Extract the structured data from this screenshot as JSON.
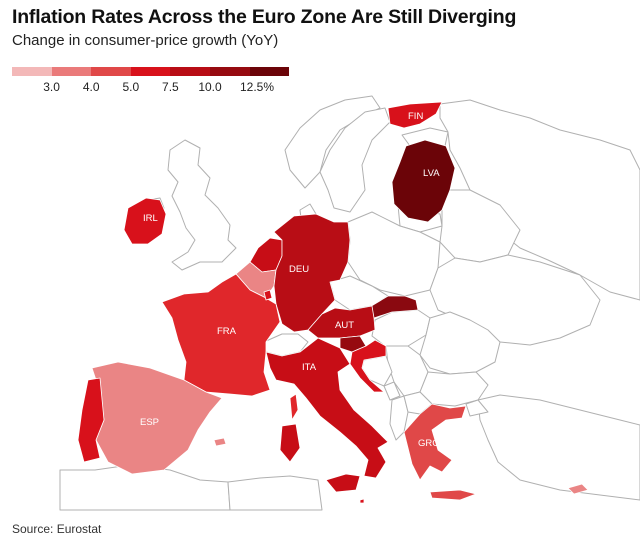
{
  "header": {
    "title": "Inflation Rates Across the Euro Zone Are Still Diverging",
    "subtitle": "Change in consumer-price growth (YoY)"
  },
  "legend": {
    "bins": [
      {
        "color": "#f3b8b8"
      },
      {
        "color": "#ea7a7a"
      },
      {
        "color": "#e04848"
      },
      {
        "color": "#d8111b"
      },
      {
        "color": "#b80d15"
      },
      {
        "color": "#960a10"
      },
      {
        "color": "#6b0408"
      }
    ],
    "tick_labels": [
      "3.0",
      "4.0",
      "5.0",
      "7.5",
      "10.0",
      "12.5%"
    ]
  },
  "countries": [
    {
      "code": "FIN",
      "color": "#d8111b"
    },
    {
      "code": "LVA",
      "color": "#6b0408"
    },
    {
      "code": "IRL",
      "color": "#d8111b"
    },
    {
      "code": "DEU",
      "color": "#b80d15"
    },
    {
      "code": "FRA",
      "color": "#e0272b"
    },
    {
      "code": "AUT",
      "color": "#b80d15"
    },
    {
      "code": "ITA",
      "color": "#c70d16"
    },
    {
      "code": "ESP",
      "color": "#ea8585"
    },
    {
      "code": "GRC",
      "color": "#e04848"
    }
  ],
  "footer": {
    "source": "Source: Eurostat"
  }
}
